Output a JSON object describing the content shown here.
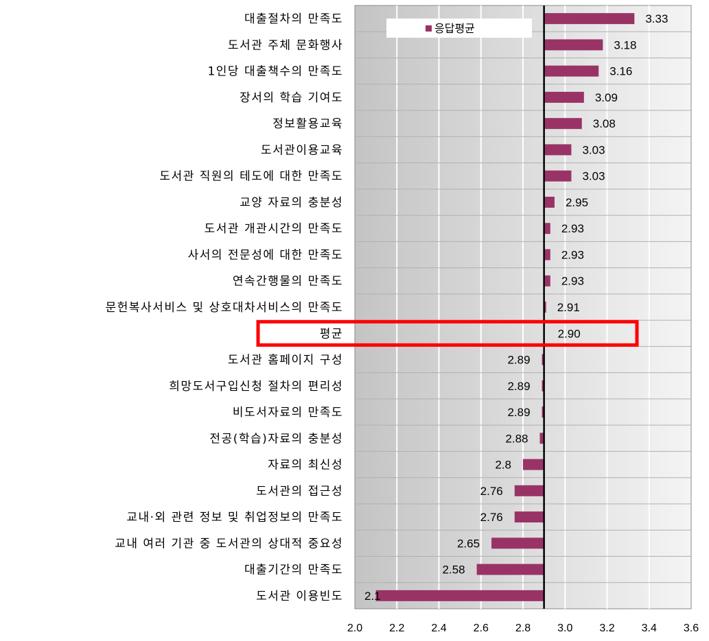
{
  "chart_data": {
    "type": "bar",
    "orientation": "horizontal",
    "baseline": 2.9,
    "xlim": [
      2.0,
      3.6
    ],
    "xticks": [
      "2.0",
      "2.2",
      "2.4",
      "2.6",
      "2.8",
      "3.0",
      "3.2",
      "3.4",
      "3.6"
    ],
    "grid": "vertical",
    "legend": {
      "position": "top-left",
      "entries": [
        "응답평균"
      ]
    },
    "bar_color": "#993366",
    "highlight_color": "#ff0000",
    "highlight_category": "평균",
    "series": [
      {
        "name": "응답평균",
        "points": [
          {
            "category": "대출절차의 만족도",
            "value": 3.33,
            "label": "3.33"
          },
          {
            "category": "도서관 주체 문화행사",
            "value": 3.18,
            "label": "3.18"
          },
          {
            "category": "1인당 대출책수의 만족도",
            "value": 3.16,
            "label": "3.16"
          },
          {
            "category": "장서의 학습 기여도",
            "value": 3.09,
            "label": "3.09"
          },
          {
            "category": "정보활용교육",
            "value": 3.08,
            "label": "3.08"
          },
          {
            "category": "도서관이용교육",
            "value": 3.03,
            "label": "3.03"
          },
          {
            "category": "도서관 직원의 테도에 대한 만족도",
            "value": 3.03,
            "label": "3.03"
          },
          {
            "category": "교양 자료의 충분성",
            "value": 2.95,
            "label": "2.95"
          },
          {
            "category": "도서관 개관시간의 만족도",
            "value": 2.93,
            "label": "2.93"
          },
          {
            "category": "사서의 전문성에 대한 만족도",
            "value": 2.93,
            "label": "2.93"
          },
          {
            "category": "연속간행물의 만족도",
            "value": 2.93,
            "label": "2.93"
          },
          {
            "category": "문헌복사서비스 및 상호대차서비스의 만족도",
            "value": 2.91,
            "label": "2.91"
          },
          {
            "category": "평균",
            "value": 2.9,
            "label": "2.90"
          },
          {
            "category": "도서관 홈페이지 구성",
            "value": 2.89,
            "label": "2.89"
          },
          {
            "category": "희망도서구입신청 절차의 편리성",
            "value": 2.89,
            "label": "2.89"
          },
          {
            "category": "비도서자료의 만족도",
            "value": 2.89,
            "label": "2.89"
          },
          {
            "category": "전공(학습)자료의 충분성",
            "value": 2.88,
            "label": "2.88"
          },
          {
            "category": "자료의 최신성",
            "value": 2.8,
            "label": "2.8"
          },
          {
            "category": "도서관의 접근성",
            "value": 2.76,
            "label": "2.76"
          },
          {
            "category": "교내·외 관련 정보 및 취업정보의 만족도",
            "value": 2.76,
            "label": "2.76"
          },
          {
            "category": "교내 여러 기관 중 도서관의 상대적 중요성",
            "value": 2.65,
            "label": "2.65"
          },
          {
            "category": "대출기간의 만족도",
            "value": 2.58,
            "label": "2.58"
          },
          {
            "category": "도서관 이용빈도",
            "value": 2.1,
            "label": "2.1"
          }
        ]
      }
    ]
  }
}
